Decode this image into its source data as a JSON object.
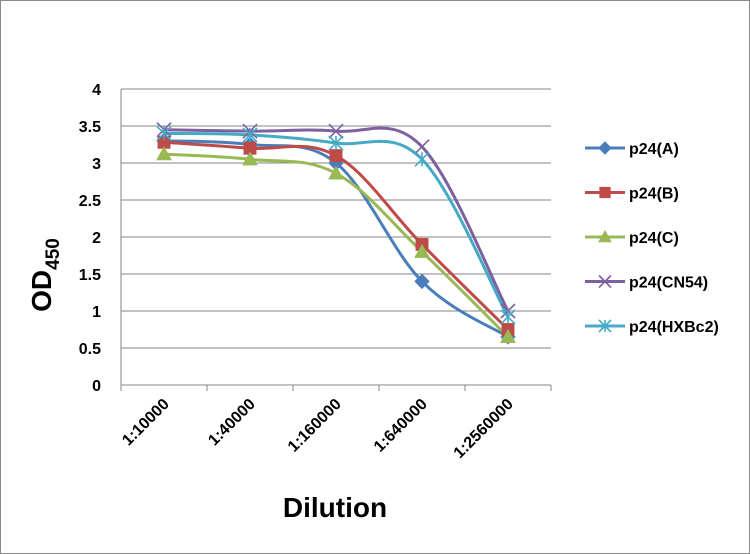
{
  "chart_data": {
    "type": "line",
    "title": "",
    "xlabel": "Dilution",
    "ylabel": "OD",
    "ylabel_sub": "450",
    "categories": [
      "1:10000",
      "1:40000",
      "1:160000",
      "1:640000",
      "1:2560000"
    ],
    "ylim": [
      0,
      4
    ],
    "yticks": [
      "0",
      "0.5",
      "1",
      "1.5",
      "2",
      "2.5",
      "3",
      "3.5",
      "4"
    ],
    "grid": "horizontal",
    "legend_position": "right",
    "series": [
      {
        "name": "p24(A)",
        "color": "#4a7ebb",
        "marker": "diamond",
        "values": [
          3.3,
          3.25,
          3.0,
          1.4,
          0.65
        ]
      },
      {
        "name": "p24(B)",
        "color": "#be4b48",
        "marker": "square",
        "values": [
          3.28,
          3.2,
          3.1,
          1.9,
          0.75
        ]
      },
      {
        "name": "p24(C)",
        "color": "#98b954",
        "marker": "triangle",
        "values": [
          3.12,
          3.05,
          2.86,
          1.8,
          0.65
        ]
      },
      {
        "name": "p24(CN54)",
        "color": "#7d60a0",
        "marker": "x",
        "values": [
          3.45,
          3.43,
          3.43,
          3.22,
          1.0
        ]
      },
      {
        "name": "p24(HXBc2)",
        "color": "#46aac5",
        "marker": "star",
        "values": [
          3.4,
          3.38,
          3.27,
          3.05,
          0.92
        ]
      }
    ]
  }
}
